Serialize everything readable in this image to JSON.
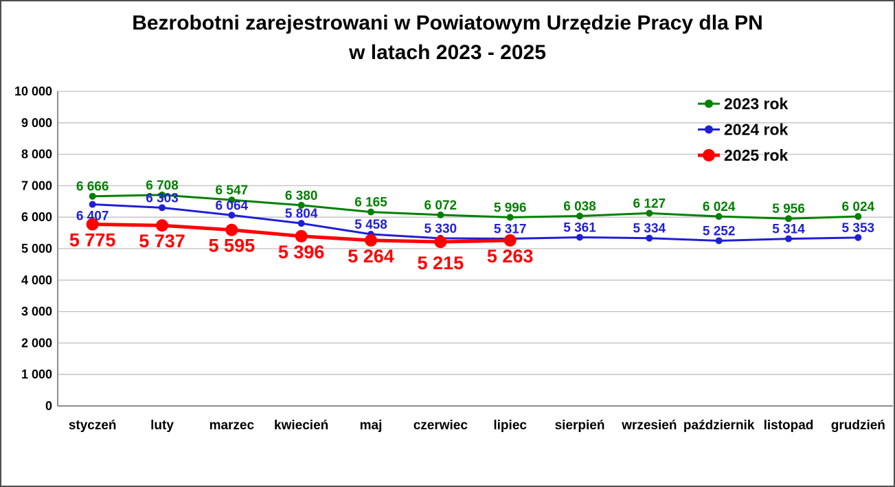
{
  "title": {
    "line1": "Bezrobotni zarejestrowani w Powiatowym Urzędzie Pracy dla PN",
    "line2": "w latach 2023 - 2025"
  },
  "colors": {
    "grid": "#bfbfbf",
    "axis": "#8c8c8c",
    "frame": "#4d4d4d",
    "text": "#000000"
  },
  "chart_data": {
    "type": "line",
    "categories": [
      "styczeń",
      "luty",
      "marzec",
      "kwiecień",
      "maj",
      "czerwiec",
      "lipiec",
      "sierpień",
      "wrzesień",
      "październik",
      "listopad",
      "grudzień"
    ],
    "series": [
      {
        "name": "2023 rok",
        "color": "#008000",
        "values": [
          6666,
          6708,
          6547,
          6380,
          6165,
          6072,
          5996,
          6038,
          6127,
          6024,
          5956,
          6024
        ],
        "label_position": "above",
        "marker_radius": 5,
        "line_width": 3,
        "emphasis": false,
        "label_side_overrides": {}
      },
      {
        "name": "2024 rok",
        "color": "#1f1fd6",
        "values": [
          6407,
          6303,
          6064,
          5804,
          5458,
          5330,
          5317,
          5361,
          5334,
          5252,
          5314,
          5353
        ],
        "label_position": "above",
        "marker_radius": 5,
        "line_width": 3,
        "emphasis": false,
        "label_side_overrides": {
          "0": "below"
        }
      },
      {
        "name": "2025 rok",
        "color": "#ff0000",
        "values": [
          5775,
          5737,
          5595,
          5396,
          5264,
          5215,
          5263
        ],
        "label_position": "below",
        "marker_radius": 9,
        "line_width": 5,
        "emphasis": true,
        "label_side_overrides": {
          "5": "below-far"
        }
      }
    ],
    "ylim": [
      0,
      10000
    ],
    "ytick_step": 1000,
    "number_format": "space-thousands",
    "grid": true,
    "legend_position": "top-right"
  }
}
